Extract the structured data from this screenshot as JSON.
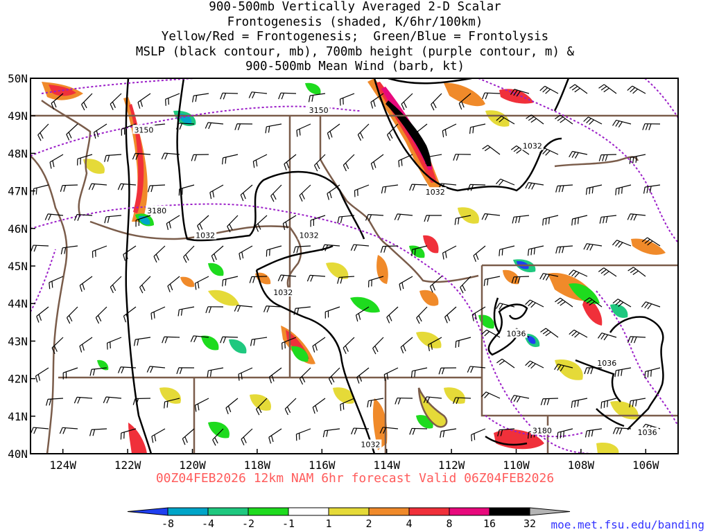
{
  "title_lines": [
    "900-500mb Vertically Averaged 2-D Scalar",
    "Frontogenesis (shaded, K/6hr/100km)",
    "Yellow/Red = Frontogenesis;  Green/Blue = Frontolysis",
    "MSLP (black contour, mb), 700mb height (purple contour, m) &",
    "900-500mb Mean Wind (barb, kt)"
  ],
  "valid_text": "00Z04FEB2026 12km NAM 6hr forecast Valid 06Z04FEB2026",
  "credit": "moe.met.fsu.edu/banding",
  "lat_labels": [
    "50N",
    "49N",
    "48N",
    "47N",
    "46N",
    "45N",
    "44N",
    "43N",
    "42N",
    "41N",
    "40N"
  ],
  "lon_labels": [
    "124W",
    "122W",
    "120W",
    "118W",
    "116W",
    "114W",
    "112W",
    "110W",
    "108W",
    "106W"
  ],
  "colorbar": {
    "labels": [
      "-8",
      "-4",
      "-2",
      "-1",
      "1",
      "2",
      "4",
      "8",
      "16",
      "32"
    ],
    "colors": [
      "#1f3ff0",
      "#00a5c8",
      "#1fc87f",
      "#1edb1e",
      "#ffffff",
      "#e5da38",
      "#f08a2a",
      "#f0303a",
      "#e8097c",
      "#000000",
      "#b4b4b4"
    ]
  },
  "contour_labels": {
    "mslp": [
      {
        "text": "1032",
        "lon": -119.6,
        "lat": 45.82
      },
      {
        "text": "1032",
        "lon": -116.4,
        "lat": 45.82
      },
      {
        "text": "1032",
        "lon": -117.2,
        "lat": 44.3
      },
      {
        "text": "1032",
        "lon": -112.5,
        "lat": 46.97
      },
      {
        "text": "1032",
        "lon": -109.5,
        "lat": 48.2
      },
      {
        "text": "1032",
        "lon": -114.5,
        "lat": 40.25
      },
      {
        "text": "1036",
        "lon": -110.0,
        "lat": 43.2
      },
      {
        "text": "1036",
        "lon": -107.2,
        "lat": 42.42
      },
      {
        "text": "1036",
        "lon": -105.95,
        "lat": 40.57
      }
    ],
    "height": [
      {
        "text": "3150",
        "lon": -116.1,
        "lat": 49.15
      },
      {
        "text": "3150",
        "lon": -121.5,
        "lat": 48.63
      },
      {
        "text": "3180",
        "lon": -121.1,
        "lat": 46.48
      },
      {
        "text": "3180",
        "lon": -109.2,
        "lat": 40.62
      }
    ]
  }
}
